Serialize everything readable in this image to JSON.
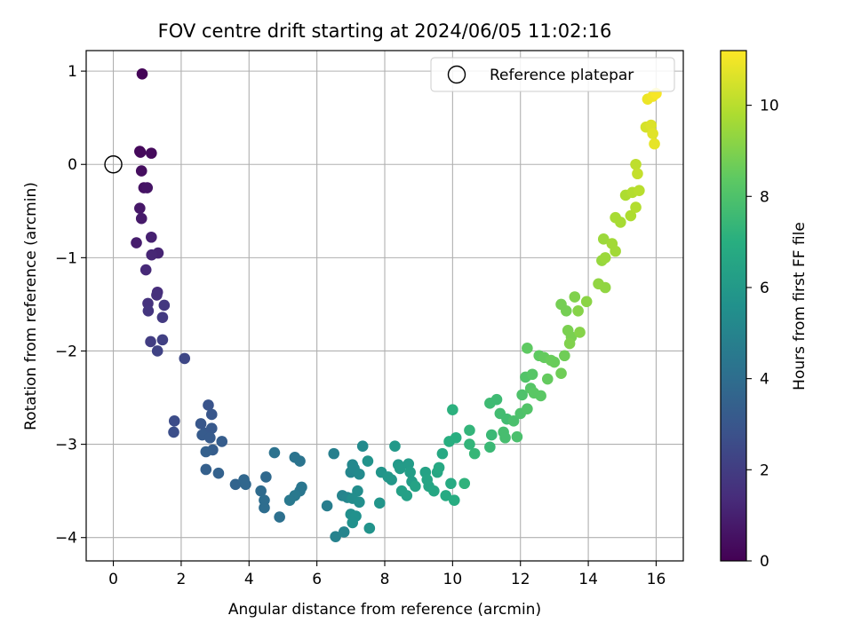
{
  "chart_data": {
    "type": "scatter",
    "title": "FOV centre drift starting at 2024/06/05 11:02:16",
    "xlabel": "Angular distance from reference (arcmin)",
    "ylabel": "Rotation from reference (arcmin)",
    "xlim": [
      -0.8,
      16.8
    ],
    "ylim": [
      -4.25,
      1.22
    ],
    "x_ticks": [
      0,
      2,
      4,
      6,
      8,
      10,
      12,
      14,
      16
    ],
    "y_ticks": [
      1,
      0,
      -1,
      -2,
      -3,
      -4
    ],
    "grid": true,
    "legend": {
      "placement": "top-right",
      "entries": [
        "Reference platepar"
      ]
    },
    "reference_point": {
      "x": 0,
      "y": 0
    },
    "colorbar": {
      "label": "Hours from first FF file",
      "range": [
        0,
        11.2
      ],
      "ticks": [
        0,
        2,
        4,
        6,
        8,
        10
      ],
      "colormap": "viridis"
    },
    "points": [
      {
        "x": 0.85,
        "y": 0.97,
        "c": 0.1
      },
      {
        "x": 0.78,
        "y": 0.14,
        "c": 0.2
      },
      {
        "x": 0.8,
        "y": 0.13,
        "c": 0.25
      },
      {
        "x": 1.12,
        "y": 0.12,
        "c": 0.3
      },
      {
        "x": 0.83,
        "y": -0.07,
        "c": 0.4
      },
      {
        "x": 0.9,
        "y": -0.25,
        "c": 0.5
      },
      {
        "x": 1.0,
        "y": -0.25,
        "c": 0.6
      },
      {
        "x": 0.78,
        "y": -0.47,
        "c": 0.7
      },
      {
        "x": 0.83,
        "y": -0.58,
        "c": 0.8
      },
      {
        "x": 0.68,
        "y": -0.84,
        "c": 0.9
      },
      {
        "x": 1.12,
        "y": -0.78,
        "c": 1.0
      },
      {
        "x": 1.32,
        "y": -0.95,
        "c": 1.1
      },
      {
        "x": 1.13,
        "y": -0.97,
        "c": 1.2
      },
      {
        "x": 0.96,
        "y": -1.13,
        "c": 1.3
      },
      {
        "x": 1.3,
        "y": -1.37,
        "c": 1.4
      },
      {
        "x": 1.28,
        "y": -1.4,
        "c": 1.5
      },
      {
        "x": 1.02,
        "y": -1.49,
        "c": 1.6
      },
      {
        "x": 1.03,
        "y": -1.57,
        "c": 1.7
      },
      {
        "x": 1.5,
        "y": -1.51,
        "c": 1.8
      },
      {
        "x": 1.45,
        "y": -1.64,
        "c": 1.9
      },
      {
        "x": 1.1,
        "y": -1.9,
        "c": 2.0
      },
      {
        "x": 1.45,
        "y": -1.88,
        "c": 2.1
      },
      {
        "x": 1.3,
        "y": -2.0,
        "c": 2.2
      },
      {
        "x": 2.1,
        "y": -2.08,
        "c": 2.4
      },
      {
        "x": 1.8,
        "y": -2.75,
        "c": 2.6
      },
      {
        "x": 1.78,
        "y": -2.87,
        "c": 2.7
      },
      {
        "x": 2.8,
        "y": -2.58,
        "c": 2.9
      },
      {
        "x": 2.9,
        "y": -2.68,
        "c": 3.0
      },
      {
        "x": 2.58,
        "y": -2.78,
        "c": 3.0
      },
      {
        "x": 2.9,
        "y": -2.83,
        "c": 3.1
      },
      {
        "x": 2.7,
        "y": -2.88,
        "c": 3.1
      },
      {
        "x": 2.62,
        "y": -2.9,
        "c": 3.2
      },
      {
        "x": 2.85,
        "y": -2.93,
        "c": 3.2
      },
      {
        "x": 3.2,
        "y": -2.97,
        "c": 3.3
      },
      {
        "x": 2.93,
        "y": -3.06,
        "c": 3.3
      },
      {
        "x": 2.73,
        "y": -3.08,
        "c": 3.4
      },
      {
        "x": 2.73,
        "y": -3.27,
        "c": 3.4
      },
      {
        "x": 3.1,
        "y": -3.31,
        "c": 3.5
      },
      {
        "x": 3.6,
        "y": -3.43,
        "c": 3.6
      },
      {
        "x": 3.85,
        "y": -3.38,
        "c": 3.7
      },
      {
        "x": 3.9,
        "y": -3.43,
        "c": 3.7
      },
      {
        "x": 4.5,
        "y": -3.35,
        "c": 3.8
      },
      {
        "x": 4.35,
        "y": -3.5,
        "c": 3.9
      },
      {
        "x": 4.45,
        "y": -3.6,
        "c": 4.0
      },
      {
        "x": 4.45,
        "y": -3.68,
        "c": 4.0
      },
      {
        "x": 4.9,
        "y": -3.78,
        "c": 4.1
      },
      {
        "x": 4.75,
        "y": -3.09,
        "c": 4.2
      },
      {
        "x": 5.35,
        "y": -3.14,
        "c": 4.3
      },
      {
        "x": 5.5,
        "y": -3.18,
        "c": 4.3
      },
      {
        "x": 5.55,
        "y": -3.46,
        "c": 4.4
      },
      {
        "x": 5.5,
        "y": -3.5,
        "c": 4.4
      },
      {
        "x": 5.35,
        "y": -3.55,
        "c": 4.5
      },
      {
        "x": 5.2,
        "y": -3.6,
        "c": 4.5
      },
      {
        "x": 6.3,
        "y": -3.66,
        "c": 4.7
      },
      {
        "x": 6.5,
        "y": -3.1,
        "c": 4.8
      },
      {
        "x": 6.55,
        "y": -3.99,
        "c": 4.9
      },
      {
        "x": 6.8,
        "y": -3.94,
        "c": 5.0
      },
      {
        "x": 6.75,
        "y": -3.55,
        "c": 5.0
      },
      {
        "x": 6.9,
        "y": -3.57,
        "c": 5.1
      },
      {
        "x": 7.0,
        "y": -3.3,
        "c": 5.1
      },
      {
        "x": 7.05,
        "y": -3.22,
        "c": 5.2
      },
      {
        "x": 7.1,
        "y": -3.26,
        "c": 5.2
      },
      {
        "x": 7.35,
        "y": -3.02,
        "c": 5.3
      },
      {
        "x": 7.25,
        "y": -3.32,
        "c": 5.3
      },
      {
        "x": 7.2,
        "y": -3.5,
        "c": 5.4
      },
      {
        "x": 7.05,
        "y": -3.58,
        "c": 5.4
      },
      {
        "x": 7.25,
        "y": -3.62,
        "c": 5.5
      },
      {
        "x": 7.0,
        "y": -3.75,
        "c": 5.5
      },
      {
        "x": 7.15,
        "y": -3.77,
        "c": 5.6
      },
      {
        "x": 7.05,
        "y": -3.84,
        "c": 5.6
      },
      {
        "x": 7.5,
        "y": -3.18,
        "c": 5.7
      },
      {
        "x": 7.55,
        "y": -3.9,
        "c": 5.7
      },
      {
        "x": 7.85,
        "y": -3.63,
        "c": 5.8
      },
      {
        "x": 7.9,
        "y": -3.3,
        "c": 5.8
      },
      {
        "x": 8.1,
        "y": -3.35,
        "c": 5.9
      },
      {
        "x": 8.2,
        "y": -3.38,
        "c": 5.9
      },
      {
        "x": 8.3,
        "y": -3.02,
        "c": 6.0
      },
      {
        "x": 8.4,
        "y": -3.22,
        "c": 6.0
      },
      {
        "x": 8.45,
        "y": -3.26,
        "c": 6.1
      },
      {
        "x": 8.7,
        "y": -3.21,
        "c": 6.1
      },
      {
        "x": 8.75,
        "y": -3.3,
        "c": 6.2
      },
      {
        "x": 8.8,
        "y": -3.4,
        "c": 6.2
      },
      {
        "x": 8.5,
        "y": -3.5,
        "c": 6.3
      },
      {
        "x": 8.65,
        "y": -3.55,
        "c": 6.3
      },
      {
        "x": 8.9,
        "y": -3.45,
        "c": 6.4
      },
      {
        "x": 9.2,
        "y": -3.3,
        "c": 6.4
      },
      {
        "x": 9.25,
        "y": -3.38,
        "c": 6.5
      },
      {
        "x": 9.3,
        "y": -3.45,
        "c": 6.5
      },
      {
        "x": 9.45,
        "y": -3.5,
        "c": 6.6
      },
      {
        "x": 9.55,
        "y": -3.3,
        "c": 6.6
      },
      {
        "x": 9.7,
        "y": -3.1,
        "c": 6.7
      },
      {
        "x": 9.6,
        "y": -3.25,
        "c": 6.7
      },
      {
        "x": 9.8,
        "y": -3.55,
        "c": 6.8
      },
      {
        "x": 9.95,
        "y": -3.42,
        "c": 6.8
      },
      {
        "x": 10.05,
        "y": -3.6,
        "c": 6.9
      },
      {
        "x": 9.9,
        "y": -2.97,
        "c": 7.0
      },
      {
        "x": 10.1,
        "y": -2.93,
        "c": 7.0
      },
      {
        "x": 10.0,
        "y": -2.63,
        "c": 7.1
      },
      {
        "x": 10.35,
        "y": -3.42,
        "c": 7.2
      },
      {
        "x": 10.5,
        "y": -2.85,
        "c": 7.3
      },
      {
        "x": 10.5,
        "y": -3.0,
        "c": 7.3
      },
      {
        "x": 10.65,
        "y": -3.1,
        "c": 7.4
      },
      {
        "x": 11.1,
        "y": -3.03,
        "c": 7.5
      },
      {
        "x": 11.15,
        "y": -2.9,
        "c": 7.5
      },
      {
        "x": 11.1,
        "y": -2.56,
        "c": 7.6
      },
      {
        "x": 11.3,
        "y": -2.52,
        "c": 7.6
      },
      {
        "x": 11.4,
        "y": -2.67,
        "c": 7.7
      },
      {
        "x": 11.6,
        "y": -2.73,
        "c": 7.7
      },
      {
        "x": 11.5,
        "y": -2.87,
        "c": 7.8
      },
      {
        "x": 11.55,
        "y": -2.93,
        "c": 7.8
      },
      {
        "x": 11.8,
        "y": -2.75,
        "c": 7.9
      },
      {
        "x": 11.9,
        "y": -2.92,
        "c": 7.9
      },
      {
        "x": 12.0,
        "y": -2.67,
        "c": 8.0
      },
      {
        "x": 12.05,
        "y": -2.47,
        "c": 8.0
      },
      {
        "x": 12.2,
        "y": -2.62,
        "c": 8.1
      },
      {
        "x": 12.15,
        "y": -2.28,
        "c": 8.1
      },
      {
        "x": 12.35,
        "y": -2.25,
        "c": 8.2
      },
      {
        "x": 12.3,
        "y": -2.4,
        "c": 8.2
      },
      {
        "x": 12.4,
        "y": -2.45,
        "c": 8.3
      },
      {
        "x": 12.6,
        "y": -2.48,
        "c": 8.3
      },
      {
        "x": 12.2,
        "y": -1.97,
        "c": 8.4
      },
      {
        "x": 12.55,
        "y": -2.05,
        "c": 8.4
      },
      {
        "x": 12.7,
        "y": -2.07,
        "c": 8.5
      },
      {
        "x": 12.8,
        "y": -2.3,
        "c": 8.5
      },
      {
        "x": 12.9,
        "y": -2.1,
        "c": 8.6
      },
      {
        "x": 13.0,
        "y": -2.12,
        "c": 8.6
      },
      {
        "x": 13.2,
        "y": -2.24,
        "c": 8.7
      },
      {
        "x": 13.3,
        "y": -2.05,
        "c": 8.7
      },
      {
        "x": 13.2,
        "y": -1.5,
        "c": 8.8
      },
      {
        "x": 13.35,
        "y": -1.57,
        "c": 8.8
      },
      {
        "x": 13.4,
        "y": -1.78,
        "c": 8.9
      },
      {
        "x": 13.5,
        "y": -1.85,
        "c": 8.9
      },
      {
        "x": 13.45,
        "y": -1.92,
        "c": 9.0
      },
      {
        "x": 13.6,
        "y": -1.42,
        "c": 9.0
      },
      {
        "x": 13.7,
        "y": -1.57,
        "c": 9.1
      },
      {
        "x": 13.75,
        "y": -1.8,
        "c": 9.1
      },
      {
        "x": 13.95,
        "y": -1.47,
        "c": 9.2
      },
      {
        "x": 14.3,
        "y": -1.28,
        "c": 9.3
      },
      {
        "x": 14.5,
        "y": -1.32,
        "c": 9.3
      },
      {
        "x": 14.4,
        "y": -1.03,
        "c": 9.4
      },
      {
        "x": 14.45,
        "y": -0.8,
        "c": 9.5
      },
      {
        "x": 14.5,
        "y": -1.0,
        "c": 9.5
      },
      {
        "x": 14.7,
        "y": -0.85,
        "c": 9.6
      },
      {
        "x": 14.8,
        "y": -0.93,
        "c": 9.6
      },
      {
        "x": 14.8,
        "y": -0.57,
        "c": 9.7
      },
      {
        "x": 14.95,
        "y": -0.62,
        "c": 9.7
      },
      {
        "x": 15.1,
        "y": -0.33,
        "c": 9.8
      },
      {
        "x": 15.25,
        "y": -0.55,
        "c": 9.8
      },
      {
        "x": 15.3,
        "y": -0.3,
        "c": 9.9
      },
      {
        "x": 15.4,
        "y": -0.46,
        "c": 9.9
      },
      {
        "x": 15.5,
        "y": -0.28,
        "c": 10.0
      },
      {
        "x": 15.4,
        "y": 0.0,
        "c": 10.1
      },
      {
        "x": 15.45,
        "y": -0.1,
        "c": 10.2
      },
      {
        "x": 15.7,
        "y": 0.4,
        "c": 10.5
      },
      {
        "x": 15.85,
        "y": 0.42,
        "c": 10.6
      },
      {
        "x": 15.9,
        "y": 0.33,
        "c": 10.7
      },
      {
        "x": 15.95,
        "y": 0.22,
        "c": 10.8
      },
      {
        "x": 15.75,
        "y": 0.7,
        "c": 10.9
      },
      {
        "x": 15.9,
        "y": 0.73,
        "c": 11.0
      },
      {
        "x": 16.0,
        "y": 0.76,
        "c": 11.1
      }
    ]
  }
}
